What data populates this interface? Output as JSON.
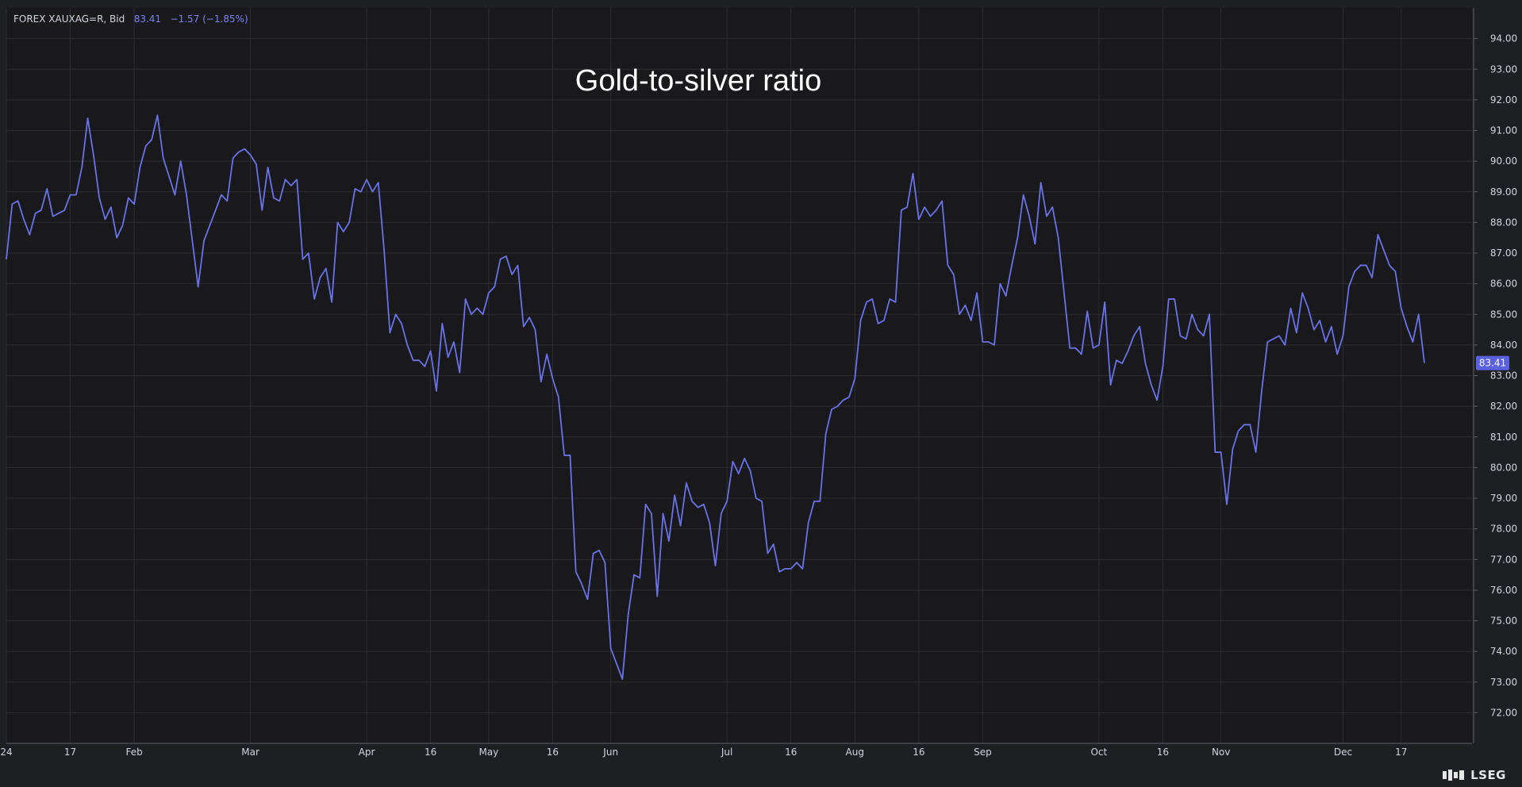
{
  "header": {
    "symbol": "FOREX XAUXAG=R, Bid",
    "last": "83.41",
    "change": "−1.57 (−1.85%)"
  },
  "brand": {
    "name": "LSEG"
  },
  "colors": {
    "background": "#1e1f22",
    "plot_background": "#19191c",
    "grid": "#2c2d31",
    "line": "#6a72e8",
    "axis_text": "#d1d4dc",
    "price_tag": "#5b62e0"
  },
  "chart_data": {
    "type": "line",
    "title": "Gold-to-silver ratio",
    "xlabel": "",
    "ylabel": "",
    "ylim": [
      71.0,
      95.0
    ],
    "grid": true,
    "legend": "none",
    "y_ticks": [
      "72.00",
      "73.00",
      "74.00",
      "75.00",
      "76.00",
      "77.00",
      "78.00",
      "79.00",
      "80.00",
      "81.00",
      "82.00",
      "83.00",
      "84.00",
      "85.00",
      "86.00",
      "87.00",
      "88.00",
      "89.00",
      "90.00",
      "91.00",
      "92.00",
      "93.00",
      "94.00"
    ],
    "x_ticks": [
      {
        "label": "24",
        "pos": 0
      },
      {
        "label": "17",
        "pos": 11
      },
      {
        "label": "Feb",
        "pos": 22
      },
      {
        "label": "Mar",
        "pos": 42
      },
      {
        "label": "Apr",
        "pos": 62
      },
      {
        "label": "16",
        "pos": 73
      },
      {
        "label": "May",
        "pos": 83
      },
      {
        "label": "16",
        "pos": 94
      },
      {
        "label": "Jun",
        "pos": 104
      },
      {
        "label": "Jul",
        "pos": 124
      },
      {
        "label": "16",
        "pos": 135
      },
      {
        "label": "Aug",
        "pos": 146
      },
      {
        "label": "16",
        "pos": 157
      },
      {
        "label": "Sep",
        "pos": 168
      },
      {
        "label": "Oct",
        "pos": 188
      },
      {
        "label": "16",
        "pos": 199
      },
      {
        "label": "Nov",
        "pos": 209
      },
      {
        "label": "Dec",
        "pos": 230
      },
      {
        "label": "17",
        "pos": 240
      }
    ],
    "last_value_label": "83.41",
    "series": [
      {
        "values": [
          86.8,
          88.6,
          88.7,
          88.1,
          87.6,
          88.3,
          88.4,
          89.1,
          88.2,
          88.3,
          88.4,
          88.9,
          88.9,
          89.8,
          91.4,
          90.2,
          88.8,
          88.1,
          88.5,
          87.5,
          87.9,
          88.8,
          88.6,
          89.8,
          90.5,
          90.7,
          91.5,
          90.1,
          89.5,
          88.9,
          90.0,
          88.9,
          87.4,
          85.9,
          87.4,
          87.9,
          88.4,
          88.9,
          88.7,
          90.1,
          90.3,
          90.4,
          90.2,
          89.9,
          88.4,
          89.8,
          88.8,
          88.7,
          89.4,
          89.2,
          89.4,
          86.8,
          87.0,
          85.5,
          86.2,
          86.5,
          85.4,
          88.0,
          87.7,
          88.0,
          89.1,
          89.0,
          89.4,
          89.0,
          89.3,
          87.1,
          84.4,
          85.0,
          84.7,
          84.0,
          83.5,
          83.5,
          83.3,
          83.8,
          82.5,
          84.7,
          83.6,
          84.1,
          83.1,
          85.5,
          85.0,
          85.2,
          85.0,
          85.7,
          85.9,
          86.8,
          86.9,
          86.3,
          86.6,
          84.6,
          84.9,
          84.5,
          82.8,
          83.7,
          82.9,
          82.3,
          80.4,
          80.4,
          76.6,
          76.2,
          75.7,
          77.2,
          77.3,
          76.9,
          74.1,
          73.6,
          73.1,
          75.2,
          76.5,
          76.4,
          78.8,
          78.5,
          75.8,
          78.5,
          77.6,
          79.1,
          78.1,
          79.5,
          78.9,
          78.7,
          78.8,
          78.2,
          76.8,
          78.5,
          78.9,
          80.2,
          79.8,
          80.3,
          79.9,
          79.0,
          78.9,
          77.2,
          77.5,
          76.6,
          76.7,
          76.7,
          76.9,
          76.7,
          78.2,
          78.9,
          78.9,
          81.1,
          81.9,
          82.0,
          82.2,
          82.3,
          82.9,
          84.8,
          85.4,
          85.5,
          84.7,
          84.8,
          85.5,
          85.4,
          88.4,
          88.5,
          89.6,
          88.1,
          88.5,
          88.2,
          88.4,
          88.7,
          86.6,
          86.3,
          85.0,
          85.3,
          84.8,
          85.7,
          84.1,
          84.1,
          84.0,
          86.0,
          85.6,
          86.6,
          87.5,
          88.9,
          88.2,
          87.3,
          89.3,
          88.2,
          88.5,
          87.5,
          85.7,
          83.9,
          83.9,
          83.7,
          85.1,
          83.9,
          84.0,
          85.4,
          82.7,
          83.5,
          83.4,
          83.8,
          84.3,
          84.6,
          83.4,
          82.7,
          82.2,
          83.3,
          85.5,
          85.5,
          84.3,
          84.2,
          85.0,
          84.5,
          84.3,
          85.0,
          80.5,
          80.5,
          78.8,
          80.6,
          81.2,
          81.4,
          81.4,
          80.5,
          82.5,
          84.1,
          84.2,
          84.3,
          84.0,
          85.2,
          84.4,
          85.7,
          85.2,
          84.5,
          84.8,
          84.1,
          84.6,
          83.7,
          84.3,
          85.9,
          86.4,
          86.6,
          86.6,
          86.2,
          87.6,
          87.1,
          86.6,
          86.4,
          85.2,
          84.6,
          84.1,
          85.0,
          83.41
        ]
      }
    ]
  }
}
